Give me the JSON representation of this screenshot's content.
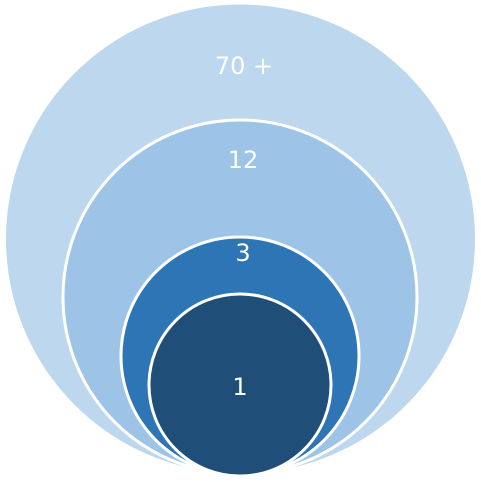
{
  "diagram": {
    "type": "nested-circles",
    "rings": [
      {
        "id": "outer",
        "label": "70 +",
        "fill": "#BDD7EE"
      },
      {
        "id": "second",
        "label": "12",
        "fill": "#9DC3E6"
      },
      {
        "id": "third",
        "label": "3",
        "fill": "#2E75B6"
      },
      {
        "id": "inner",
        "label": "1",
        "fill": "#1F4E79"
      }
    ],
    "stroke_color": "#FFFFFF"
  }
}
